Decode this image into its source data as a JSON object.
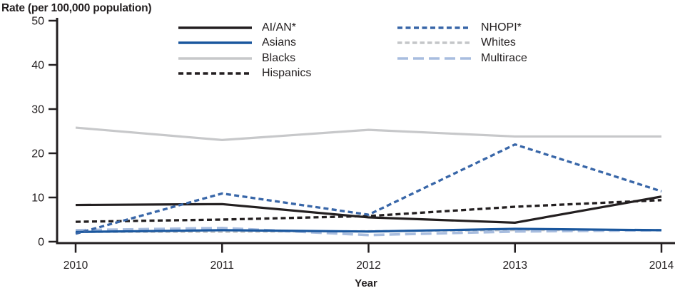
{
  "figure": {
    "background": "#ffffff"
  },
  "chart_data": {
    "type": "line",
    "title": "Rate (per 100,000 population)",
    "xlabel": "Year",
    "x": [
      "2010",
      "2011",
      "2012",
      "2013",
      "2014"
    ],
    "ylim": [
      0,
      50
    ],
    "yticks": [
      0,
      10,
      20,
      30,
      40,
      50
    ],
    "grid": false,
    "axis_color": "#231f20",
    "series": [
      {
        "name": "AI/AN*",
        "color": "#231f20",
        "dash": "solid",
        "values": [
          8.3,
          8.5,
          5.5,
          4.3,
          10.2
        ]
      },
      {
        "name": "Asians",
        "color": "#1a579e",
        "dash": "solid",
        "values": [
          2.2,
          2.6,
          2.3,
          2.9,
          2.6
        ]
      },
      {
        "name": "Blacks",
        "color": "#c7c8ca",
        "dash": "solid",
        "values": [
          25.8,
          23.0,
          25.3,
          23.8,
          23.8
        ]
      },
      {
        "name": "Hispanics",
        "color": "#231f20",
        "dash": "dashed",
        "values": [
          4.5,
          5.0,
          5.8,
          7.9,
          9.4
        ]
      },
      {
        "name": "NHOPI*",
        "color": "#3866a8",
        "dash": "dashed",
        "values": [
          1.8,
          10.9,
          6.1,
          22.0,
          11.4
        ]
      },
      {
        "name": "Whites",
        "color": "#c4c6c8",
        "dash": "short-dash",
        "values": [
          2.2,
          2.2,
          2.4,
          2.6,
          2.6
        ]
      },
      {
        "name": "Multirace",
        "color": "#a8bddf",
        "dash": "long-dash",
        "values": [
          2.6,
          3.1,
          1.5,
          2.3,
          2.6
        ]
      }
    ],
    "legend": {
      "position": "top-center",
      "columns": [
        [
          "AI/AN*",
          "Asians",
          "Blacks",
          "Hispanics"
        ],
        [
          "NHOPI*",
          "Whites",
          "Multirace"
        ]
      ]
    }
  }
}
